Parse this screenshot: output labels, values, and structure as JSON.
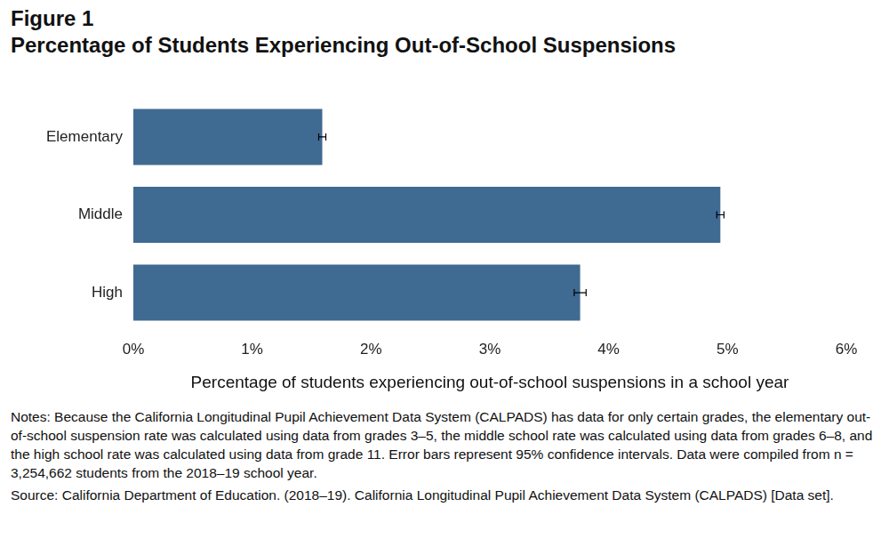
{
  "chart_data": {
    "type": "bar",
    "orientation": "horizontal",
    "figure": "Figure 1",
    "title": "Percentage of Students Experiencing Out-of-School Suspensions",
    "x_label": "Percentage of students experiencing out-of-school suspensions in a school year",
    "categories": [
      "Elementary",
      "Middle",
      "High"
    ],
    "values": [
      1.59,
      4.94,
      3.76
    ],
    "errors": [
      0.03,
      0.03,
      0.05
    ],
    "color": "#3f6a92",
    "xlim": [
      0,
      6
    ],
    "xticks": [
      {
        "value": 0,
        "label": "0%"
      },
      {
        "value": 1,
        "label": "1%"
      },
      {
        "value": 2,
        "label": "2%"
      },
      {
        "value": 3,
        "label": "3%"
      },
      {
        "value": 4,
        "label": "4%"
      },
      {
        "value": 5,
        "label": "5%"
      },
      {
        "value": 6,
        "label": "6%"
      }
    ],
    "grid": false,
    "notes": "Notes: Because the California Longitudinal Pupil Achievement Data System (CALPADS) has data for only certain grades, the elementary out-of-school suspension rate was calculated using data from grades 3–5, the middle school rate was calculated using data from grades 6–8, and the high school rate was calculated using data from grade 11. Error bars represent 95% confidence intervals. Data were compiled from n = 3,254,662 students from the 2018–19 school year.",
    "source": "Source: California Department of Education. (2018–19). California Longitudinal Pupil Achievement Data System (CALPADS) [Data set]."
  }
}
